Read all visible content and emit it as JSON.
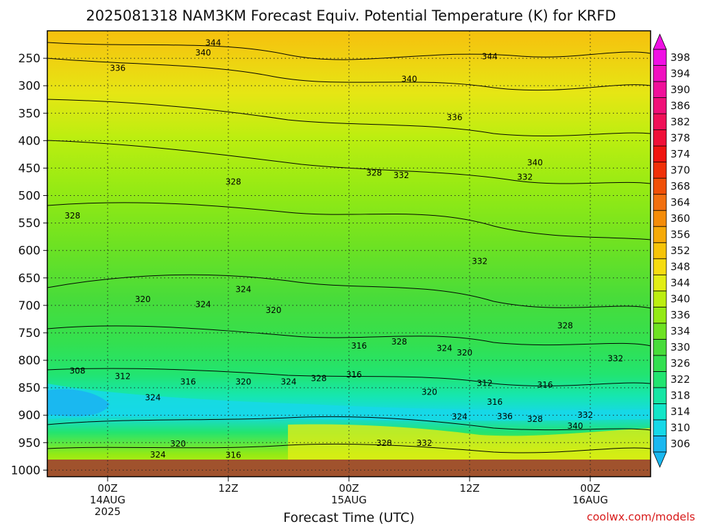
{
  "chart_data": {
    "type": "heatmap",
    "title": "2025081318 NAM3KM Forecast Equiv. Potential Temperature (K) for KRFD",
    "xlabel": "Forecast Time (UTC)",
    "ylabel": "",
    "x_ticks": [
      {
        "hour": 0,
        "lines": [
          "00Z",
          "14AUG",
          "2025"
        ]
      },
      {
        "hour": 12,
        "lines": [
          "12Z"
        ]
      },
      {
        "hour": 24,
        "lines": [
          "00Z",
          "15AUG"
        ]
      },
      {
        "hour": 36,
        "lines": [
          "12Z"
        ]
      },
      {
        "hour": 48,
        "lines": [
          "00Z",
          "16AUG"
        ]
      }
    ],
    "xlim_hours": [
      -6,
      54
    ],
    "y_ticks": [
      250,
      300,
      350,
      400,
      450,
      500,
      550,
      600,
      650,
      700,
      750,
      800,
      850,
      900,
      950,
      1000
    ],
    "ylim_hPa": [
      200,
      1012
    ],
    "colorbar_levels": [
      306,
      310,
      314,
      318,
      322,
      326,
      330,
      334,
      336,
      340,
      344,
      348,
      352,
      356,
      360,
      364,
      368,
      370,
      374,
      378,
      382,
      386,
      390,
      394,
      398
    ],
    "colorbar_colors": [
      "#1ab8f0",
      "#16d8e8",
      "#12e6c8",
      "#16e6a4",
      "#22e470",
      "#33e050",
      "#48dc3a",
      "#6ee222",
      "#94ea14",
      "#bcee10",
      "#e2ee14",
      "#f6dc10",
      "#f6c408",
      "#f6aa08",
      "#f48c08",
      "#f27010",
      "#f05008",
      "#f03008",
      "#f01410",
      "#f01038",
      "#f01058",
      "#f01078",
      "#f0109a",
      "#f010c0",
      "#f010e4"
    ],
    "grid": true,
    "contour_interval": 2,
    "contour_labels": [
      {
        "text": "344",
        "hour": 10.5,
        "hPa": 222
      },
      {
        "text": "340",
        "hour": 9.5,
        "hPa": 240
      },
      {
        "text": "344",
        "hour": 38,
        "hPa": 247
      },
      {
        "text": "336",
        "hour": 1,
        "hPa": 268
      },
      {
        "text": "340",
        "hour": 30,
        "hPa": 288
      },
      {
        "text": "336",
        "hour": 34.5,
        "hPa": 358
      },
      {
        "text": "340",
        "hour": 42.5,
        "hPa": 440
      },
      {
        "text": "332",
        "hour": 41.5,
        "hPa": 466
      },
      {
        "text": "332",
        "hour": 29.2,
        "hPa": 463
      },
      {
        "text": "328",
        "hour": 26.5,
        "hPa": 459
      },
      {
        "text": "328",
        "hour": 12.5,
        "hPa": 475
      },
      {
        "text": "328",
        "hour": -3.5,
        "hPa": 537
      },
      {
        "text": "332",
        "hour": 37,
        "hPa": 620
      },
      {
        "text": "324",
        "hour": 13.5,
        "hPa": 671
      },
      {
        "text": "320",
        "hour": 3.5,
        "hPa": 689
      },
      {
        "text": "324",
        "hour": 9.5,
        "hPa": 698
      },
      {
        "text": "320",
        "hour": 16.5,
        "hPa": 709
      },
      {
        "text": "328",
        "hour": 45.5,
        "hPa": 737
      },
      {
        "text": "316",
        "hour": 25,
        "hPa": 774
      },
      {
        "text": "328",
        "hour": 29,
        "hPa": 766
      },
      {
        "text": "324",
        "hour": 33.5,
        "hPa": 778
      },
      {
        "text": "320",
        "hour": 35.5,
        "hPa": 786
      },
      {
        "text": "332",
        "hour": 50.5,
        "hPa": 797
      },
      {
        "text": "308",
        "hour": -3,
        "hPa": 819
      },
      {
        "text": "312",
        "hour": 1.5,
        "hPa": 829
      },
      {
        "text": "316",
        "hour": 8,
        "hPa": 839
      },
      {
        "text": "320",
        "hour": 13.5,
        "hPa": 839
      },
      {
        "text": "324",
        "hour": 18,
        "hPa": 839
      },
      {
        "text": "328",
        "hour": 21,
        "hPa": 833
      },
      {
        "text": "316",
        "hour": 24.5,
        "hPa": 826
      },
      {
        "text": "312",
        "hour": 37.5,
        "hPa": 842
      },
      {
        "text": "316",
        "hour": 43.5,
        "hPa": 845
      },
      {
        "text": "320",
        "hour": 32,
        "hPa": 858
      },
      {
        "text": "316",
        "hour": 38.5,
        "hPa": 876
      },
      {
        "text": "324",
        "hour": 4.5,
        "hPa": 868
      },
      {
        "text": "324",
        "hour": 35,
        "hPa": 903
      },
      {
        "text": "336",
        "hour": 39.5,
        "hPa": 902
      },
      {
        "text": "328",
        "hour": 42.5,
        "hPa": 907
      },
      {
        "text": "332",
        "hour": 47.5,
        "hPa": 900
      },
      {
        "text": "340",
        "hour": 46.5,
        "hPa": 920
      },
      {
        "text": "320",
        "hour": 7,
        "hPa": 952
      },
      {
        "text": "328",
        "hour": 27.5,
        "hPa": 951
      },
      {
        "text": "332",
        "hour": 31.5,
        "hPa": 951
      },
      {
        "text": "324",
        "hour": 5,
        "hPa": 972
      },
      {
        "text": "316",
        "hour": 12.5,
        "hPa": 973
      }
    ]
  },
  "credit": "coolwx.com/models"
}
